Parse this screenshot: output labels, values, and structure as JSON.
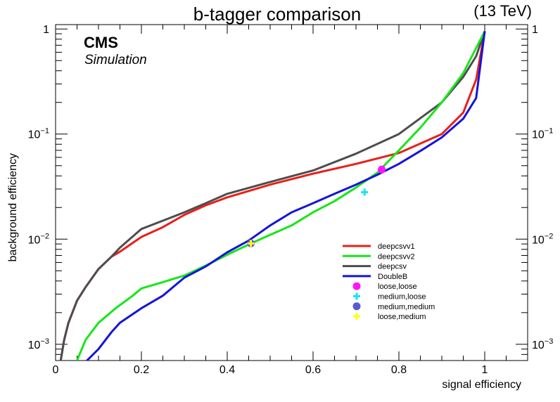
{
  "chart_data": {
    "type": "line",
    "title": "b-tagger comparison",
    "energy_label": "(13 TeV)",
    "experiment": "CMS",
    "experiment_sub": "Simulation",
    "xlabel": "signal efficiency",
    "ylabel": "background efficiency",
    "xlim": [
      0,
      1.1
    ],
    "ylim": [
      0.0007,
      1.1
    ],
    "y_scale": "log",
    "grid": false,
    "legend_position": "bottom-right",
    "x_ticks": [
      "0",
      "0.2",
      "0.4",
      "0.6",
      "0.8",
      "1"
    ],
    "y_ticks": [
      {
        "mantissa": "1",
        "exp": ""
      },
      {
        "mantissa": "10",
        "exp": "−1"
      },
      {
        "mantissa": "10",
        "exp": "−2"
      },
      {
        "mantissa": "10",
        "exp": "−3"
      }
    ],
    "series": [
      {
        "name": "deepcsvv1",
        "color": "#e8201a",
        "x": [
          0.012,
          0.02,
          0.03,
          0.05,
          0.07,
          0.1,
          0.13,
          0.15,
          0.2,
          0.25,
          0.3,
          0.35,
          0.4,
          0.5,
          0.6,
          0.7,
          0.8,
          0.9,
          0.95,
          0.98,
          1.0
        ],
        "y": [
          0.0007,
          0.0011,
          0.0016,
          0.0026,
          0.0035,
          0.0052,
          0.0068,
          0.0076,
          0.0105,
          0.013,
          0.017,
          0.021,
          0.025,
          0.033,
          0.042,
          0.052,
          0.066,
          0.1,
          0.16,
          0.33,
          0.95
        ]
      },
      {
        "name": "deepcsvv2",
        "color": "#17e617",
        "x": [
          0.05,
          0.07,
          0.1,
          0.14,
          0.18,
          0.2,
          0.25,
          0.3,
          0.35,
          0.4,
          0.45,
          0.5,
          0.55,
          0.6,
          0.65,
          0.7,
          0.75,
          0.8,
          0.85,
          0.9,
          0.95,
          1.0
        ],
        "y": [
          0.0007,
          0.0011,
          0.0016,
          0.0022,
          0.0029,
          0.0034,
          0.0039,
          0.0045,
          0.0056,
          0.0071,
          0.0089,
          0.011,
          0.0135,
          0.018,
          0.023,
          0.031,
          0.043,
          0.07,
          0.115,
          0.2,
          0.38,
          0.95
        ]
      },
      {
        "name": "deepcsv",
        "color": "#4d4d4d",
        "x": [
          0.012,
          0.02,
          0.03,
          0.05,
          0.07,
          0.1,
          0.13,
          0.15,
          0.2,
          0.25,
          0.3,
          0.35,
          0.4,
          0.5,
          0.6,
          0.7,
          0.8,
          0.9,
          0.95,
          0.98,
          1.0
        ],
        "y": [
          0.0007,
          0.0011,
          0.0016,
          0.0026,
          0.0035,
          0.0052,
          0.0068,
          0.0083,
          0.0125,
          0.015,
          0.018,
          0.022,
          0.027,
          0.035,
          0.045,
          0.065,
          0.1,
          0.2,
          0.35,
          0.55,
          0.95
        ]
      },
      {
        "name": "DoubleB",
        "color": "#1414dd",
        "x": [
          0.07,
          0.1,
          0.13,
          0.15,
          0.2,
          0.25,
          0.3,
          0.35,
          0.4,
          0.45,
          0.5,
          0.55,
          0.6,
          0.65,
          0.7,
          0.75,
          0.8,
          0.85,
          0.9,
          0.95,
          0.98,
          1.0
        ],
        "y": [
          0.00068,
          0.0009,
          0.0013,
          0.0016,
          0.0022,
          0.0029,
          0.0043,
          0.0055,
          0.0075,
          0.0097,
          0.0135,
          0.018,
          0.022,
          0.027,
          0.033,
          0.041,
          0.052,
          0.069,
          0.093,
          0.14,
          0.22,
          0.95
        ]
      }
    ],
    "working_points": [
      {
        "name": "loose,loose",
        "marker": "circle",
        "color": "#ff14ff",
        "x": 0.76,
        "y": 0.046
      },
      {
        "name": "medium,loose",
        "marker": "cross",
        "color": "#14e6f0",
        "x": 0.72,
        "y": 0.028
      },
      {
        "name": "medium,medium",
        "marker": "circle",
        "color": "#5a5ad2",
        "x": 0.455,
        "y": 0.0091
      },
      {
        "name": "loose,medium",
        "marker": "cross",
        "color": "#ffff14",
        "x": 0.455,
        "y": 0.0091
      }
    ]
  }
}
